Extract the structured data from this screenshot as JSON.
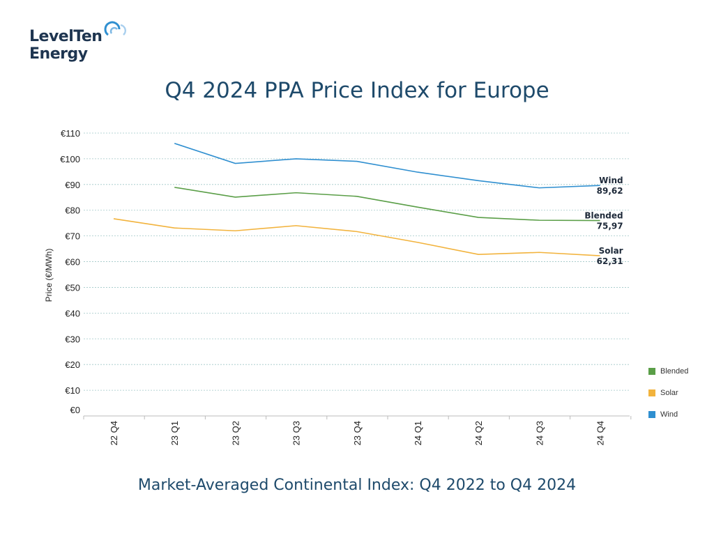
{
  "brand": {
    "line1": "LevelTen",
    "line2": "Energy"
  },
  "title": "Q4 2024 PPA Price Index for Europe",
  "subtitle": "Market-Averaged Continental Index: Q4 2022 to Q4 2024",
  "chart_data": {
    "type": "line",
    "ylabel": "Price (€/MWh)",
    "xlabel": "",
    "ylim": [
      0,
      110
    ],
    "yticks": [
      "€0",
      "€10",
      "€20",
      "€30",
      "€40",
      "€50",
      "€60",
      "€70",
      "€80",
      "€90",
      "€100",
      "€110"
    ],
    "grid": true,
    "legend_position": "bottom-right",
    "categories": [
      "22 Q4",
      "23 Q1",
      "23 Q2",
      "23 Q3",
      "23 Q4",
      "24 Q1",
      "24 Q2",
      "24 Q3",
      "24 Q4"
    ],
    "series": [
      {
        "name": "Wind",
        "color": "#2f8fd0",
        "values": [
          null,
          106,
          98.2,
          100,
          99,
          94.8,
          91.5,
          88.7,
          89.62
        ],
        "end_label": "Wind",
        "end_value": "89,62"
      },
      {
        "name": "Blended",
        "color": "#5a9e47",
        "values": [
          null,
          88.9,
          85.1,
          86.8,
          85.4,
          81.2,
          77.2,
          76.1,
          75.97
        ],
        "end_label": "Blended",
        "end_value": "75,97"
      },
      {
        "name": "Solar",
        "color": "#f2b33d",
        "values": [
          76.7,
          73.1,
          72,
          74,
          71.7,
          67.5,
          62.8,
          63.6,
          62.31
        ],
        "end_label": "Solar",
        "end_value": "62,31"
      }
    ],
    "legend": [
      {
        "name": "Blended",
        "color": "#5a9e47"
      },
      {
        "name": "Solar",
        "color": "#f2b33d"
      },
      {
        "name": "Wind",
        "color": "#2f8fd0"
      }
    ]
  }
}
